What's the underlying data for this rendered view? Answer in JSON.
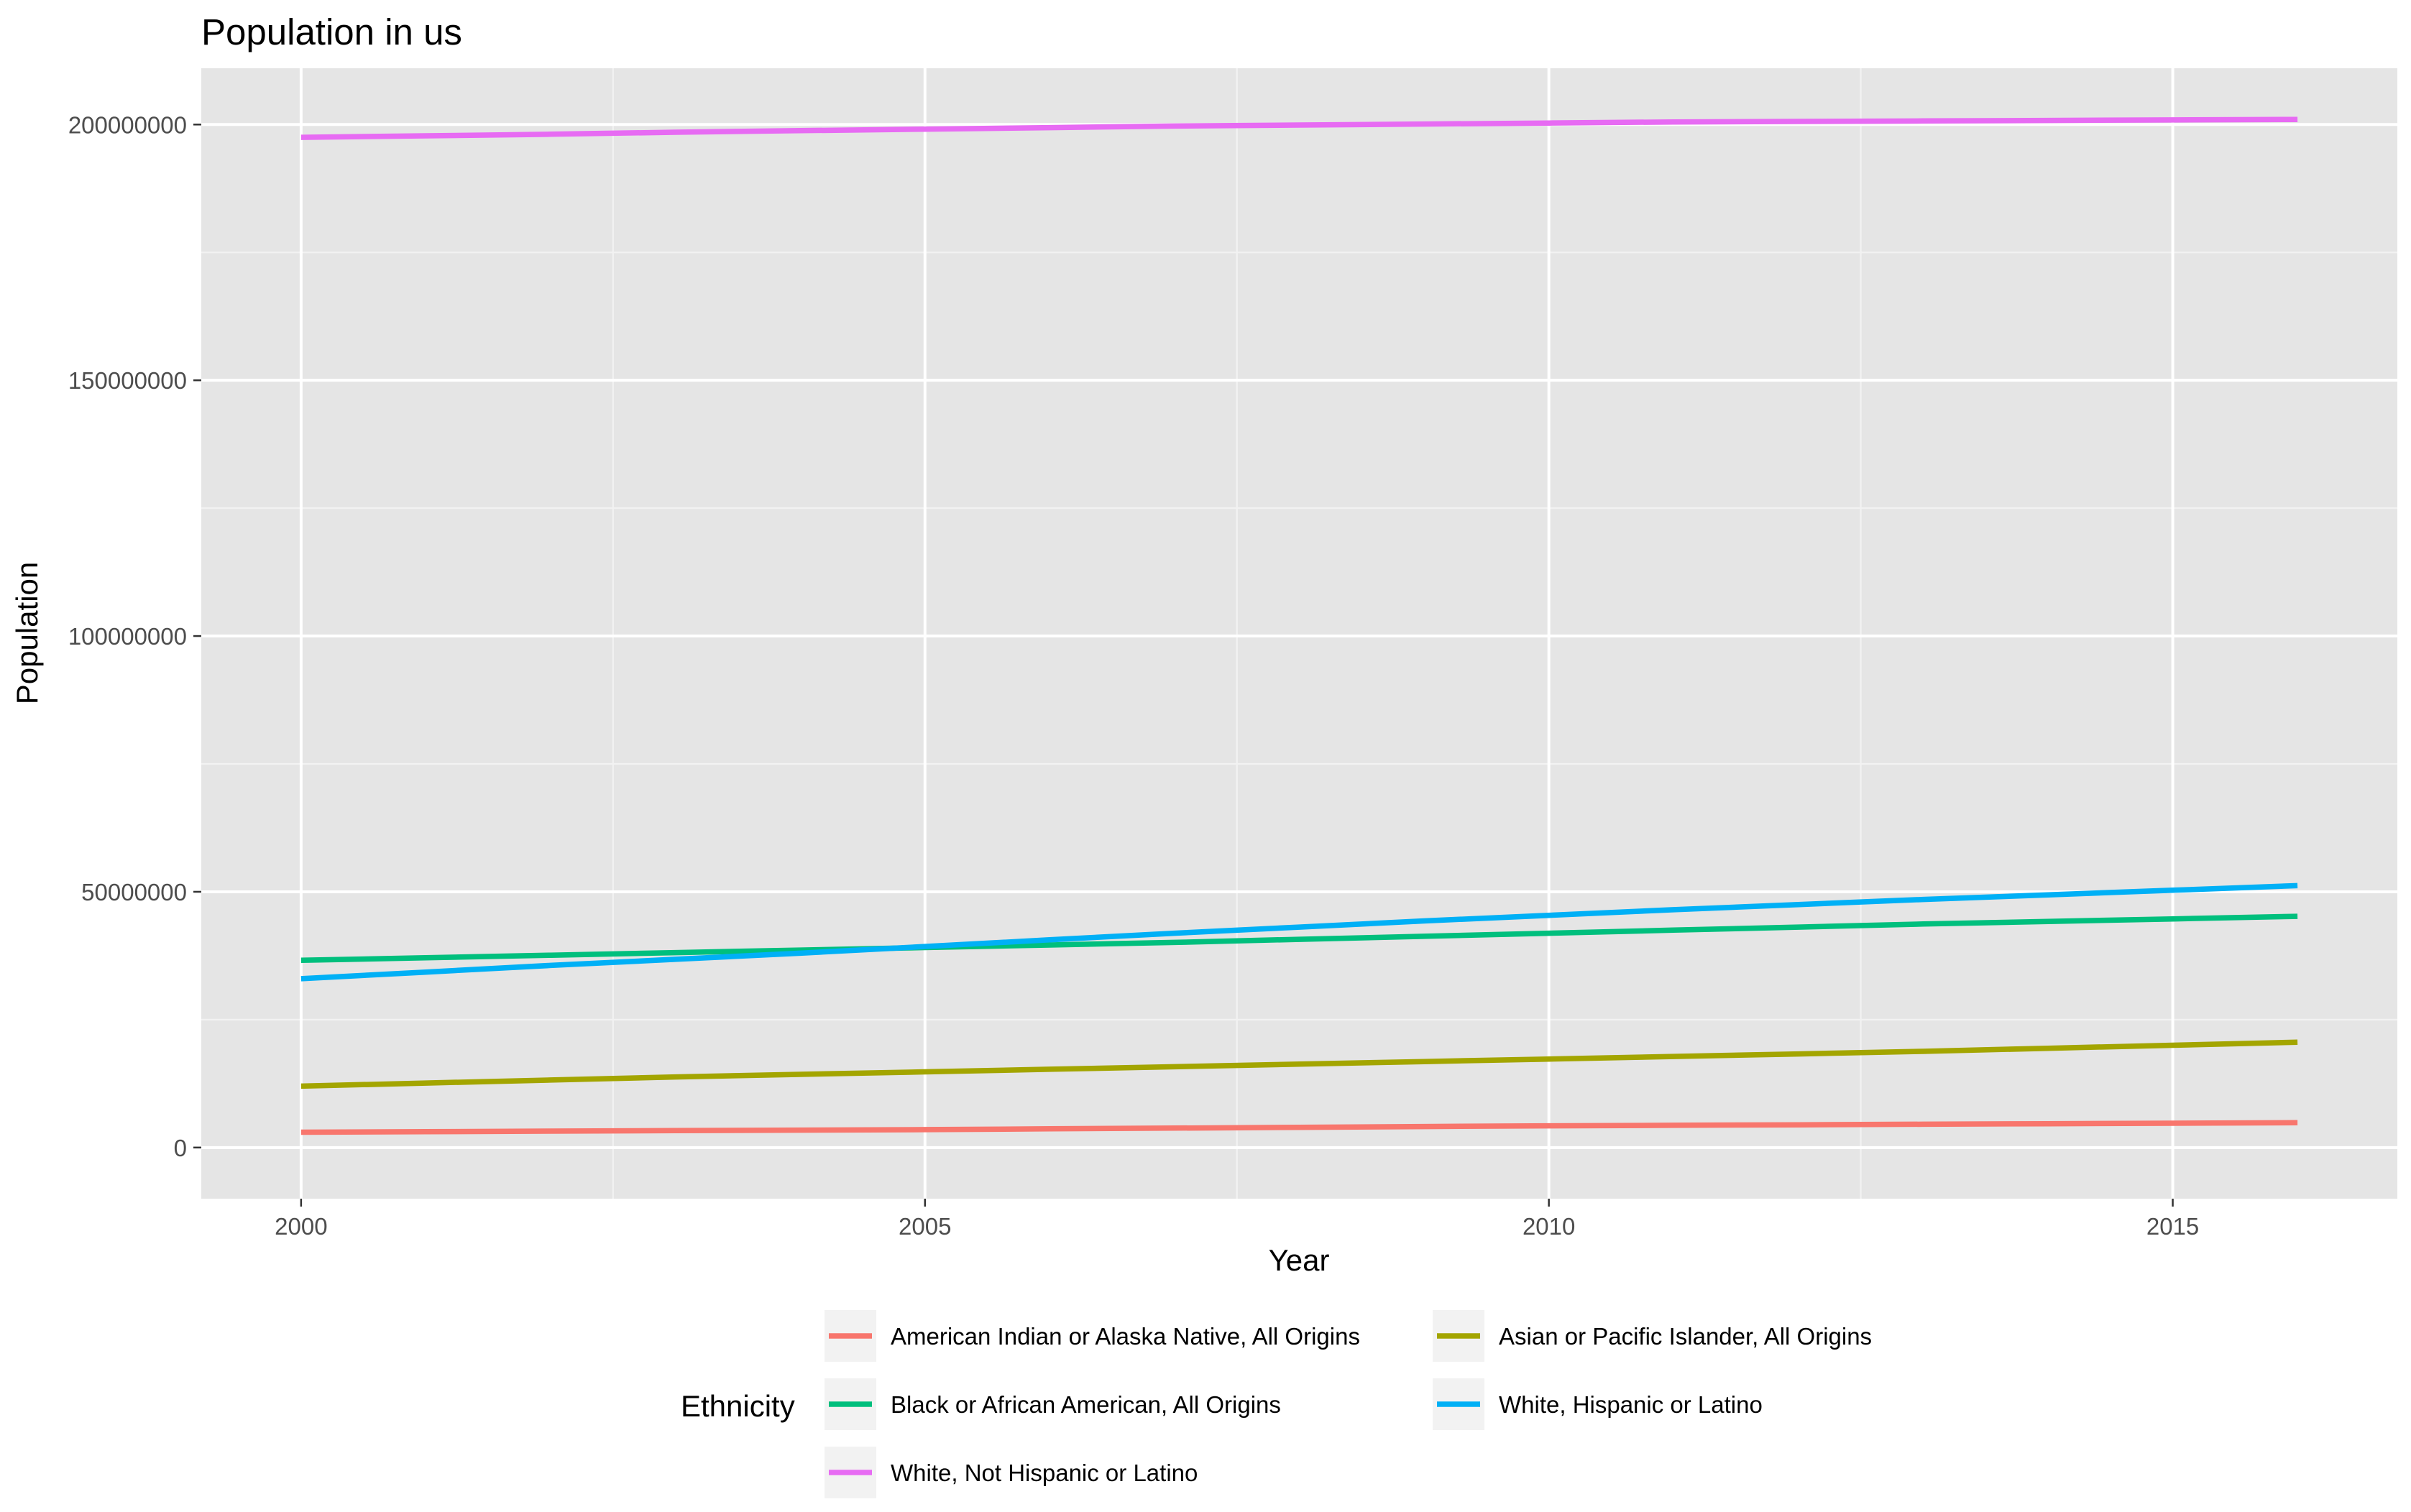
{
  "chart_data": {
    "type": "line",
    "title": "Population in us",
    "xlabel": "Year",
    "ylabel": "Population",
    "xlim": [
      1999.2,
      2016.8
    ],
    "ylim": [
      -10000000,
      211000000
    ],
    "x_ticks": [
      2000,
      2005,
      2010,
      2015
    ],
    "x_tick_labels": [
      "2000",
      "2005",
      "2010",
      "2015"
    ],
    "y_ticks": [
      0,
      50000000,
      100000000,
      150000000,
      200000000
    ],
    "y_tick_labels": [
      "0",
      "50000000",
      "100000000",
      "150000000",
      "200000000"
    ],
    "grid": true,
    "panel_background": "#e5e5e5",
    "legend": {
      "title": "Ethnicity",
      "position": "bottom"
    },
    "x": [
      2000,
      2001,
      2002,
      2003,
      2004,
      2005,
      2006,
      2007,
      2008,
      2009,
      2010,
      2011,
      2012,
      2013,
      2014,
      2015,
      2016
    ],
    "series": [
      {
        "name": "American Indian or Alaska Native, All Origins",
        "color": "#f8766d",
        "values": [
          3000000,
          3100000,
          3200000,
          3300000,
          3400000,
          3500000,
          3650000,
          3800000,
          3950000,
          4100000,
          4250000,
          4350000,
          4450000,
          4550000,
          4650000,
          4750000,
          4850000
        ]
      },
      {
        "name": "Asian or Pacific Islander, All Origins",
        "color": "#a3a500",
        "values": [
          12000000,
          12600000,
          13200000,
          13800000,
          14300000,
          14800000,
          15300000,
          15800000,
          16300000,
          16800000,
          17300000,
          17800000,
          18300000,
          18800000,
          19400000,
          20000000,
          20600000
        ]
      },
      {
        "name": "Black or African American, All Origins",
        "color": "#00bf7d",
        "values": [
          36600000,
          37100000,
          37600000,
          38100000,
          38600000,
          39100000,
          39600000,
          40100000,
          40700000,
          41300000,
          41900000,
          42500000,
          43100000,
          43700000,
          44200000,
          44700000,
          45200000
        ]
      },
      {
        "name": "White, Hispanic or Latino",
        "color": "#00b0f6",
        "values": [
          33000000,
          34300000,
          35600000,
          36800000,
          38000000,
          39300000,
          40600000,
          41900000,
          43100000,
          44300000,
          45400000,
          46500000,
          47500000,
          48500000,
          49400000,
          50300000,
          51200000
        ]
      },
      {
        "name": "White, Not Hispanic or Latino",
        "color": "#e76bf3",
        "values": [
          197500000,
          197800000,
          198100000,
          198500000,
          198800000,
          199100000,
          199400000,
          199700000,
          199900000,
          200100000,
          200300000,
          200500000,
          200600000,
          200700000,
          200800000,
          200900000,
          201000000
        ]
      }
    ]
  }
}
